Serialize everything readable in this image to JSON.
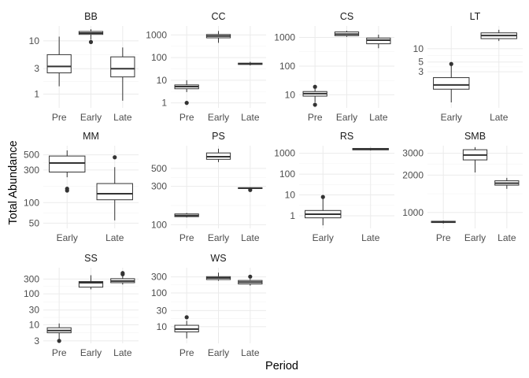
{
  "chart_data": {
    "type": "boxplot",
    "facet_layout": "wrap 4 columns, free scales",
    "xlabel": "Period",
    "ylabel": "Total Abundance",
    "y_scale": "log10",
    "grid": true,
    "panels": [
      {
        "name": "BB",
        "categories": [
          "Pre",
          "Early",
          "Late"
        ],
        "yticks": [
          1,
          3,
          10
        ],
        "ylim": [
          0.55,
          19
        ],
        "boxes": [
          {
            "category": "Pre",
            "min": 1.4,
            "q1": 2.5,
            "median": 3.3,
            "q3": 5.5,
            "max": 12,
            "outliers": []
          },
          {
            "category": "Early",
            "min": 10.5,
            "q1": 13.2,
            "median": 14,
            "q3": 15,
            "max": 16.5,
            "outliers": [
              9.5
            ]
          },
          {
            "category": "Late",
            "min": 0.75,
            "q1": 2.1,
            "median": 3.0,
            "q3": 5.0,
            "max": 7.5,
            "outliers": []
          }
        ]
      },
      {
        "name": "CC",
        "categories": [
          "Pre",
          "Early",
          "Late"
        ],
        "yticks": [
          1,
          10,
          100,
          1000
        ],
        "ylim": [
          0.6,
          2500
        ],
        "boxes": [
          {
            "category": "Pre",
            "min": 3,
            "q1": 4.2,
            "median": 5.2,
            "q3": 6.2,
            "max": 10,
            "outliers": [
              1
            ]
          },
          {
            "category": "Early",
            "min": 450,
            "q1": 750,
            "median": 900,
            "q3": 1050,
            "max": 1500,
            "outliers": []
          },
          {
            "category": "Late",
            "min": 45,
            "q1": 50,
            "median": 53,
            "q3": 57,
            "max": 65,
            "outliers": []
          }
        ]
      },
      {
        "name": "CS",
        "categories": [
          "Pre",
          "Early",
          "Late"
        ],
        "yticks": [
          10,
          100,
          1000
        ],
        "ylim": [
          3.5,
          2500
        ],
        "boxes": [
          {
            "category": "Pre",
            "min": 5.5,
            "q1": 9,
            "median": 11,
            "q3": 13,
            "max": 16,
            "outliers": [
              4.5,
              19
            ]
          },
          {
            "category": "Early",
            "min": 1050,
            "q1": 1150,
            "median": 1300,
            "q3": 1550,
            "max": 1700,
            "outliers": []
          },
          {
            "category": "Late",
            "min": 420,
            "q1": 600,
            "median": 800,
            "q3": 950,
            "max": 1250,
            "outliers": []
          }
        ]
      },
      {
        "name": "LT",
        "categories": [
          "Early",
          "Late"
        ],
        "yticks": [
          3,
          5,
          10
        ],
        "ylim": [
          0.45,
          33
        ],
        "boxes": [
          {
            "category": "Early",
            "min": 0.6,
            "q1": 1.2,
            "median": 1.5,
            "q3": 2.2,
            "max": 4.2,
            "outliers": [
              4.5
            ]
          },
          {
            "category": "Late",
            "min": 15,
            "q1": 17,
            "median": 20,
            "q3": 23,
            "max": 27,
            "outliers": []
          }
        ]
      },
      {
        "name": "MM",
        "categories": [
          "Early",
          "Late"
        ],
        "yticks": [
          50,
          100,
          300,
          500
        ],
        "ylim": [
          42,
          680
        ],
        "boxes": [
          {
            "category": "Early",
            "min": 235,
            "q1": 280,
            "median": 380,
            "q3": 480,
            "max": 580,
            "outliers": [
              150,
              160
            ]
          },
          {
            "category": "Late",
            "min": 55,
            "q1": 110,
            "median": 135,
            "q3": 190,
            "max": 330,
            "outliers": [
              460
            ]
          }
        ]
      },
      {
        "name": "PS",
        "categories": [
          "Pre",
          "Early",
          "Late"
        ],
        "yticks": [
          100,
          300,
          500
        ],
        "ylim": [
          90,
          960
        ],
        "boxes": [
          {
            "category": "Pre",
            "min": 123,
            "q1": 126,
            "median": 130,
            "q3": 136,
            "max": 140,
            "outliers": []
          },
          {
            "category": "Early",
            "min": 600,
            "q1": 650,
            "median": 700,
            "q3": 780,
            "max": 880,
            "outliers": []
          },
          {
            "category": "Late",
            "min": 275,
            "q1": 283,
            "median": 285,
            "q3": 288,
            "max": 292,
            "outliers": [
              270
            ]
          }
        ]
      },
      {
        "name": "RS",
        "categories": [
          "Early",
          "Late"
        ],
        "yticks": [
          1,
          10,
          100,
          1000
        ],
        "ylim": [
          0.25,
          2300
        ],
        "boxes": [
          {
            "category": "Early",
            "min": 0.35,
            "q1": 0.8,
            "median": 1.2,
            "q3": 1.8,
            "max": 7,
            "outliers": [
              8
            ]
          },
          {
            "category": "Late",
            "min": 1350,
            "q1": 1450,
            "median": 1550,
            "q3": 1700,
            "max": 1800,
            "outliers": []
          }
        ]
      },
      {
        "name": "SMB",
        "categories": [
          "Pre",
          "Early",
          "Late"
        ],
        "yticks": [
          1000,
          2000,
          3000
        ],
        "ylim": [
          745,
          3450
        ],
        "boxes": [
          {
            "category": "Pre",
            "min": 815,
            "q1": 830,
            "median": 840,
            "q3": 850,
            "max": 860,
            "outliers": []
          },
          {
            "category": "Early",
            "min": 2100,
            "q1": 2650,
            "median": 2900,
            "q3": 3200,
            "max": 3350,
            "outliers": []
          },
          {
            "category": "Late",
            "min": 1550,
            "q1": 1660,
            "median": 1720,
            "q3": 1800,
            "max": 1900,
            "outliers": []
          }
        ]
      },
      {
        "name": "SS",
        "categories": [
          "Pre",
          "Early",
          "Late"
        ],
        "yticks": [
          3,
          10,
          30,
          100,
          300
        ],
        "ylim": [
          2.5,
          700
        ],
        "boxes": [
          {
            "category": "Pre",
            "min": 3,
            "q1": 5.5,
            "median": 6.5,
            "q3": 8,
            "max": 11,
            "outliers": [
              3
            ]
          },
          {
            "category": "Early",
            "min": 140,
            "q1": 165,
            "median": 230,
            "q3": 250,
            "max": 400,
            "outliers": []
          },
          {
            "category": "Late",
            "min": 200,
            "q1": 230,
            "median": 260,
            "q3": 310,
            "max": 380,
            "outliers": [
              430,
              470
            ]
          }
        ]
      },
      {
        "name": "WS",
        "categories": [
          "Pre",
          "Early",
          "Late"
        ],
        "yticks": [
          10,
          30,
          100,
          300
        ],
        "ylim": [
          3.2,
          560
        ],
        "boxes": [
          {
            "category": "Pre",
            "min": 4.5,
            "q1": 7,
            "median": 8.5,
            "q3": 11,
            "max": 15,
            "outliers": [
              19
            ]
          },
          {
            "category": "Early",
            "min": 230,
            "q1": 250,
            "median": 280,
            "q3": 305,
            "max": 400,
            "outliers": []
          },
          {
            "category": "Late",
            "min": 165,
            "q1": 185,
            "median": 210,
            "q3": 235,
            "max": 260,
            "outliers": [
              305
            ]
          }
        ]
      }
    ]
  }
}
